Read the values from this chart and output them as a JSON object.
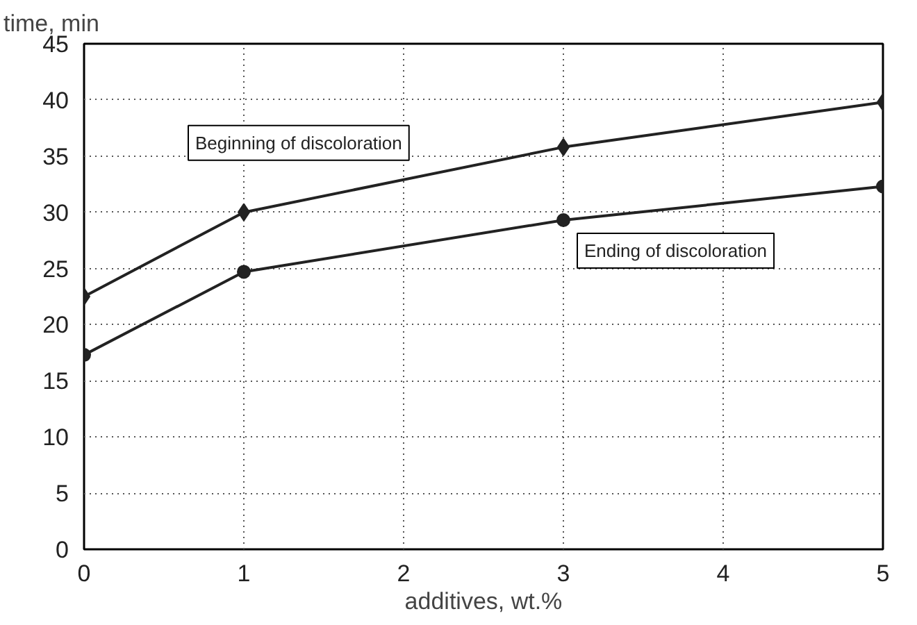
{
  "chart_data": {
    "type": "line",
    "xlabel": "additives, wt.%",
    "ylabel": "time, min",
    "x": [
      0,
      1,
      3,
      5
    ],
    "series": [
      {
        "name": "Beginning of discoloration",
        "color": "#222222",
        "marker": "diamond",
        "values": [
          22.5,
          30.0,
          35.8,
          39.8
        ]
      },
      {
        "name": "Ending of discoloration",
        "color": "#222222",
        "marker": "circle",
        "values": [
          17.3,
          24.7,
          29.3,
          32.3
        ]
      }
    ],
    "xlim": [
      0,
      5
    ],
    "xticks": [
      0,
      1,
      2,
      3,
      4,
      5
    ],
    "ylim": [
      0,
      45
    ],
    "yticks": [
      0,
      5,
      10,
      15,
      20,
      25,
      30,
      35,
      40,
      45
    ],
    "grid": true,
    "line_style": "solid"
  }
}
